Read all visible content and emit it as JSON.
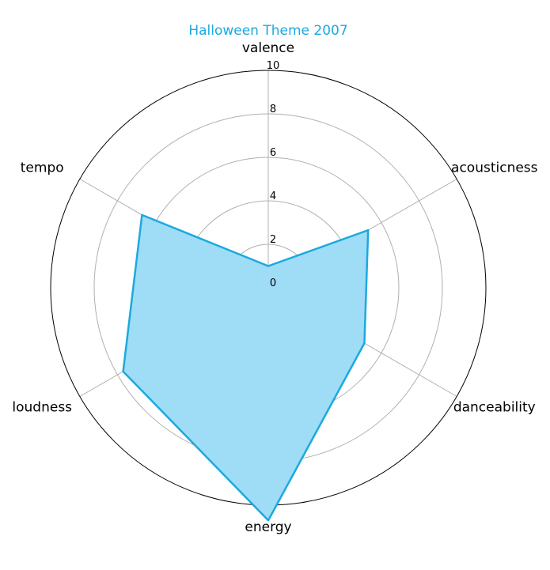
{
  "chart_data": {
    "type": "radar",
    "title": "Halloween Theme 2007",
    "axes": [
      "valence",
      "acousticness",
      "danceability",
      "energy",
      "loudness",
      "tempo"
    ],
    "series": [
      {
        "values": [
          1.0,
          5.3,
          5.1,
          10.7,
          7.7,
          6.7
        ]
      }
    ],
    "rlim": [
      0,
      10
    ],
    "rticks": [
      "0",
      "2",
      "4",
      "6",
      "8",
      "10"
    ],
    "grid": true,
    "colors": {
      "title": "#1BA9E0",
      "line": "#1BA9E0",
      "fill": "#9FDCF5",
      "grid": "#b0b0b0",
      "outer_ring": "#000000"
    }
  }
}
